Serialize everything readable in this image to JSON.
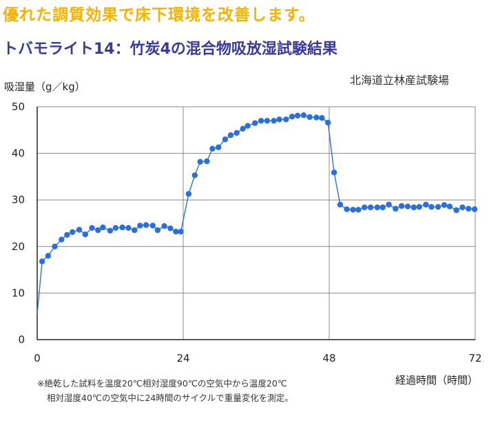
{
  "headline": "優れた調質効果で床下環境を改善します。",
  "subtitle": "トバモライト14：竹炭4の混合物吸放湿試験結果",
  "source": "北海道立林産試験場",
  "footnote": {
    "line1": "※絶乾した試料を温度20℃相対湿度90℃の空気中から温度20℃",
    "line2": "相対湿度40℃の空気中に24時間のサイクルで重量変化を測定。"
  },
  "colors": {
    "headline": "#f5b301",
    "subtitle": "#3a3a9a",
    "series": "#2a6fdb",
    "grid": "#888888"
  },
  "chart_data": {
    "type": "line",
    "ylabel": "吸湿量（g／kg）",
    "xlabel": "経過時間（時間）",
    "xlim": [
      0,
      72
    ],
    "ylim": [
      0,
      50
    ],
    "x_ticks": [
      "0",
      "24",
      "48",
      "72"
    ],
    "y_ticks": [
      "0",
      "10",
      "20",
      "30",
      "40",
      "50"
    ],
    "grid": true,
    "series": [
      {
        "name": "",
        "points": [
          [
            0,
            5.5
          ],
          [
            0.8,
            16.8
          ],
          [
            1.8,
            18.0
          ],
          [
            2.9,
            20.0
          ],
          [
            4.0,
            21.5
          ],
          [
            4.9,
            22.5
          ],
          [
            5.8,
            23.1
          ],
          [
            6.9,
            23.6
          ],
          [
            7.9,
            22.6
          ],
          [
            9.0,
            24.0
          ],
          [
            10.0,
            23.5
          ],
          [
            10.8,
            24.1
          ],
          [
            12.0,
            23.4
          ],
          [
            12.9,
            24.0
          ],
          [
            14.0,
            24.1
          ],
          [
            15.0,
            24.0
          ],
          [
            16.0,
            23.5
          ],
          [
            16.9,
            24.5
          ],
          [
            17.9,
            24.6
          ],
          [
            19.0,
            24.5
          ],
          [
            19.8,
            23.5
          ],
          [
            20.9,
            24.4
          ],
          [
            21.9,
            23.9
          ],
          [
            22.8,
            23.2
          ],
          [
            23.6,
            23.2
          ],
          [
            24.9,
            31.3
          ],
          [
            25.9,
            35.3
          ],
          [
            26.8,
            38.2
          ],
          [
            27.9,
            38.3
          ],
          [
            28.8,
            41.0
          ],
          [
            29.8,
            41.3
          ],
          [
            30.9,
            43.0
          ],
          [
            31.8,
            43.9
          ],
          [
            32.8,
            44.4
          ],
          [
            33.8,
            45.3
          ],
          [
            34.6,
            45.9
          ],
          [
            35.8,
            46.5
          ],
          [
            36.8,
            47.0
          ],
          [
            37.8,
            47.0
          ],
          [
            38.9,
            47.0
          ],
          [
            39.8,
            47.3
          ],
          [
            40.9,
            47.3
          ],
          [
            41.9,
            47.9
          ],
          [
            42.8,
            48.1
          ],
          [
            43.8,
            48.2
          ],
          [
            44.8,
            47.8
          ],
          [
            45.9,
            47.7
          ],
          [
            46.8,
            47.6
          ],
          [
            47.8,
            46.6
          ],
          [
            48.8,
            35.9
          ],
          [
            49.8,
            29.0
          ],
          [
            50.9,
            28.0
          ],
          [
            51.9,
            27.9
          ],
          [
            52.8,
            27.9
          ],
          [
            53.8,
            28.4
          ],
          [
            54.8,
            28.4
          ],
          [
            55.9,
            28.4
          ],
          [
            56.8,
            28.4
          ],
          [
            57.8,
            29.0
          ],
          [
            58.9,
            28.1
          ],
          [
            59.9,
            28.7
          ],
          [
            60.9,
            28.6
          ],
          [
            61.9,
            28.4
          ],
          [
            62.8,
            28.5
          ],
          [
            63.9,
            29.0
          ],
          [
            64.8,
            28.5
          ],
          [
            65.9,
            28.5
          ],
          [
            66.9,
            28.9
          ],
          [
            67.8,
            28.6
          ],
          [
            68.9,
            27.8
          ],
          [
            69.9,
            28.4
          ],
          [
            70.9,
            28.1
          ],
          [
            71.9,
            28.0
          ]
        ]
      }
    ]
  }
}
